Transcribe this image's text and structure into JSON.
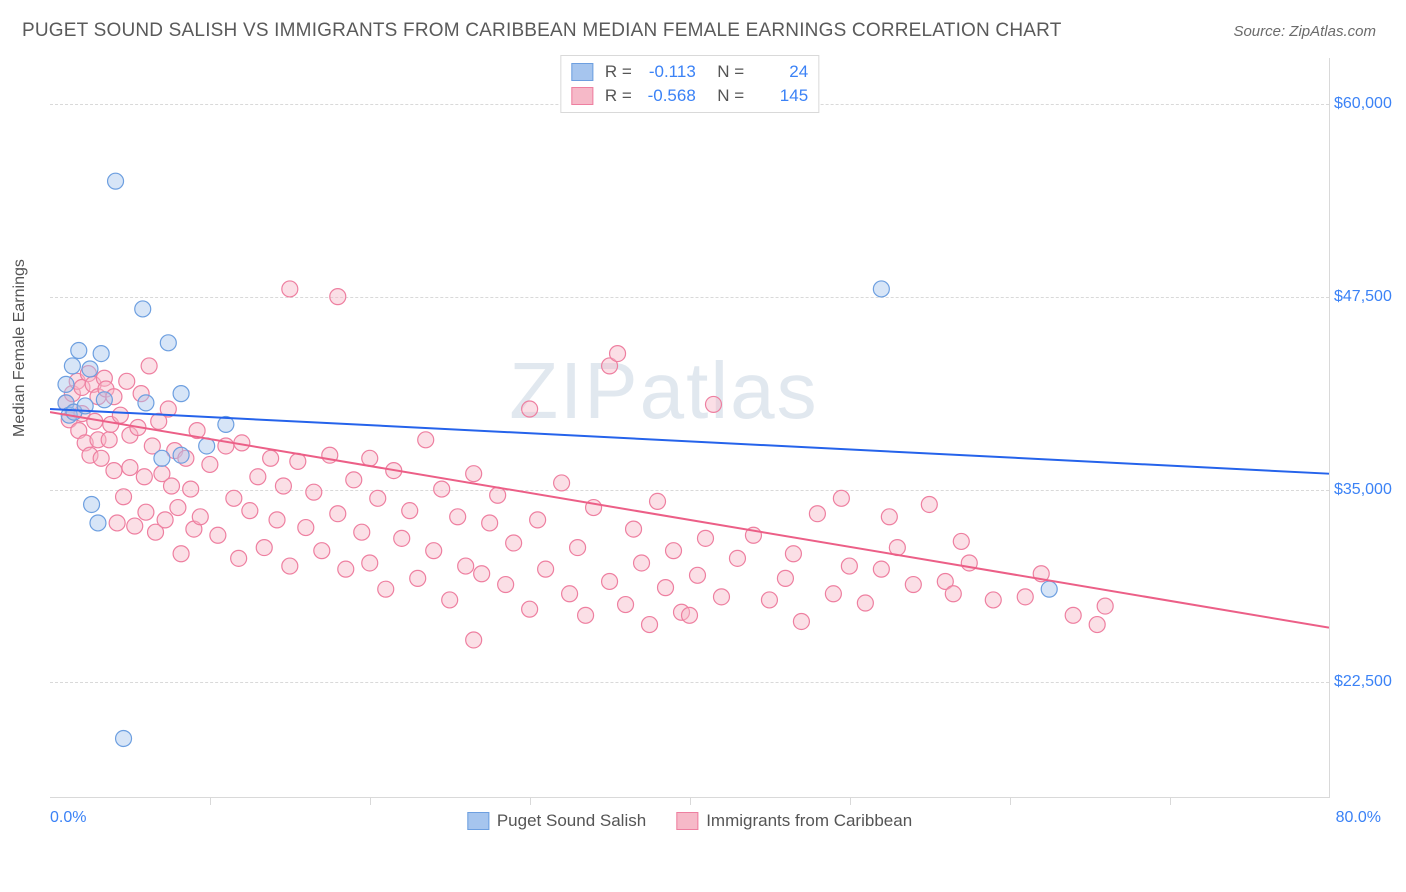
{
  "header": {
    "title": "PUGET SOUND SALISH VS IMMIGRANTS FROM CARIBBEAN MEDIAN FEMALE EARNINGS CORRELATION CHART",
    "source": "Source: ZipAtlas.com"
  },
  "chart": {
    "type": "scatter",
    "watermark": "ZIPatlas",
    "yaxis_label": "Median Female Earnings",
    "xlim": [
      0,
      80
    ],
    "ylim": [
      15000,
      63000
    ],
    "x_min_label": "0.0%",
    "x_max_label": "80.0%",
    "x_ticks": [
      10,
      20,
      30,
      40,
      50,
      60,
      70
    ],
    "y_ticks": [
      {
        "v": 22500,
        "label": "$22,500"
      },
      {
        "v": 35000,
        "label": "$35,000"
      },
      {
        "v": 47500,
        "label": "$47,500"
      },
      {
        "v": 60000,
        "label": "$60,000"
      }
    ],
    "grid_color": "#d9d9d9",
    "background_color": "#ffffff",
    "marker_radius": 8,
    "marker_opacity": 0.45,
    "line_width": 2,
    "series": [
      {
        "name": "Puget Sound Salish",
        "color_fill": "#a6c5ee",
        "color_stroke": "#6d9fe0",
        "line_color": "#2563eb",
        "R": "-0.113",
        "N": "24",
        "trend": {
          "x1": 0,
          "y1": 40200,
          "x2": 80,
          "y2": 36000
        },
        "points": [
          [
            1,
            41800
          ],
          [
            1,
            40600
          ],
          [
            1.2,
            39800
          ],
          [
            1.4,
            43000
          ],
          [
            1.5,
            40000
          ],
          [
            1.8,
            44000
          ],
          [
            2.2,
            40400
          ],
          [
            2.5,
            42800
          ],
          [
            2.6,
            34000
          ],
          [
            3,
            32800
          ],
          [
            3.2,
            43800
          ],
          [
            3.4,
            40800
          ],
          [
            4.1,
            55000
          ],
          [
            4.6,
            18800
          ],
          [
            5.8,
            46700
          ],
          [
            6,
            40600
          ],
          [
            7.4,
            44500
          ],
          [
            8.2,
            41200
          ],
          [
            7,
            37000
          ],
          [
            8.2,
            37200
          ],
          [
            9.8,
            37800
          ],
          [
            11,
            39200
          ],
          [
            52,
            48000
          ],
          [
            62.5,
            28500
          ]
        ]
      },
      {
        "name": "Immigrants from Caribbean",
        "color_fill": "#f6b9c8",
        "color_stroke": "#ee7fa0",
        "line_color": "#ec5f87",
        "R": "-0.568",
        "N": "145",
        "trend": {
          "x1": 0,
          "y1": 40000,
          "x2": 80,
          "y2": 26000
        },
        "points": [
          [
            1,
            40600
          ],
          [
            1.2,
            39500
          ],
          [
            1.4,
            41200
          ],
          [
            1.5,
            40000
          ],
          [
            1.7,
            42000
          ],
          [
            1.8,
            38800
          ],
          [
            2,
            41600
          ],
          [
            2,
            39900
          ],
          [
            2.2,
            38000
          ],
          [
            2.4,
            42500
          ],
          [
            2.5,
            37200
          ],
          [
            2.7,
            41800
          ],
          [
            2.8,
            39400
          ],
          [
            3,
            41000
          ],
          [
            3,
            38200
          ],
          [
            3.2,
            37000
          ],
          [
            3.4,
            42200
          ],
          [
            3.5,
            41500
          ],
          [
            3.7,
            38200
          ],
          [
            3.8,
            39200
          ],
          [
            4,
            41000
          ],
          [
            4,
            36200
          ],
          [
            4.2,
            32800
          ],
          [
            4.4,
            39800
          ],
          [
            4.6,
            34500
          ],
          [
            4.8,
            42000
          ],
          [
            5,
            38500
          ],
          [
            5,
            36400
          ],
          [
            5.3,
            32600
          ],
          [
            5.5,
            39000
          ],
          [
            5.7,
            41200
          ],
          [
            5.9,
            35800
          ],
          [
            6,
            33500
          ],
          [
            6.2,
            43000
          ],
          [
            6.4,
            37800
          ],
          [
            6.6,
            32200
          ],
          [
            6.8,
            39400
          ],
          [
            7,
            36000
          ],
          [
            7.2,
            33000
          ],
          [
            7.4,
            40200
          ],
          [
            7.6,
            35200
          ],
          [
            7.8,
            37500
          ],
          [
            8,
            33800
          ],
          [
            8.2,
            30800
          ],
          [
            8.5,
            37000
          ],
          [
            8.8,
            35000
          ],
          [
            9,
            32400
          ],
          [
            9.2,
            38800
          ],
          [
            9.4,
            33200
          ],
          [
            10,
            36600
          ],
          [
            10.5,
            32000
          ],
          [
            11,
            37800
          ],
          [
            11.5,
            34400
          ],
          [
            11.8,
            30500
          ],
          [
            12,
            38000
          ],
          [
            12.5,
            33600
          ],
          [
            13,
            35800
          ],
          [
            13.4,
            31200
          ],
          [
            13.8,
            37000
          ],
          [
            14.2,
            33000
          ],
          [
            14.6,
            35200
          ],
          [
            15,
            30000
          ],
          [
            15,
            48000
          ],
          [
            15.5,
            36800
          ],
          [
            16,
            32500
          ],
          [
            16.5,
            34800
          ],
          [
            17,
            31000
          ],
          [
            17.5,
            37200
          ],
          [
            18,
            33400
          ],
          [
            18,
            47500
          ],
          [
            18.5,
            29800
          ],
          [
            19,
            35600
          ],
          [
            19.5,
            32200
          ],
          [
            20,
            37000
          ],
          [
            20,
            30200
          ],
          [
            20.5,
            34400
          ],
          [
            21,
            28500
          ],
          [
            21.5,
            36200
          ],
          [
            22,
            31800
          ],
          [
            22.5,
            33600
          ],
          [
            23,
            29200
          ],
          [
            23.5,
            38200
          ],
          [
            24,
            31000
          ],
          [
            24.5,
            35000
          ],
          [
            25,
            27800
          ],
          [
            25.5,
            33200
          ],
          [
            26,
            30000
          ],
          [
            26.5,
            36000
          ],
          [
            26.5,
            25200
          ],
          [
            27,
            29500
          ],
          [
            27.5,
            32800
          ],
          [
            28,
            34600
          ],
          [
            28.5,
            28800
          ],
          [
            29,
            31500
          ],
          [
            30,
            27200
          ],
          [
            30,
            40200
          ],
          [
            30.5,
            33000
          ],
          [
            31,
            29800
          ],
          [
            32,
            35400
          ],
          [
            32.5,
            28200
          ],
          [
            33,
            31200
          ],
          [
            33.5,
            26800
          ],
          [
            34,
            33800
          ],
          [
            35,
            29000
          ],
          [
            35,
            43000
          ],
          [
            35.5,
            43800
          ],
          [
            36,
            27500
          ],
          [
            36.5,
            32400
          ],
          [
            37,
            30200
          ],
          [
            37.5,
            26200
          ],
          [
            38,
            34200
          ],
          [
            38.5,
            28600
          ],
          [
            39,
            31000
          ],
          [
            39.5,
            27000
          ],
          [
            40,
            26800
          ],
          [
            40.5,
            29400
          ],
          [
            41,
            31800
          ],
          [
            41.5,
            40500
          ],
          [
            42,
            28000
          ],
          [
            43,
            30500
          ],
          [
            44,
            32000
          ],
          [
            45,
            27800
          ],
          [
            46,
            29200
          ],
          [
            46.5,
            30800
          ],
          [
            47,
            26400
          ],
          [
            48,
            33400
          ],
          [
            49,
            28200
          ],
          [
            49.5,
            34400
          ],
          [
            50,
            30000
          ],
          [
            51,
            27600
          ],
          [
            52,
            29800
          ],
          [
            52.5,
            33200
          ],
          [
            53,
            31200
          ],
          [
            54,
            28800
          ],
          [
            55,
            34000
          ],
          [
            56,
            29000
          ],
          [
            56.5,
            28200
          ],
          [
            57,
            31600
          ],
          [
            57.5,
            30200
          ],
          [
            59,
            27800
          ],
          [
            61,
            28000
          ],
          [
            62,
            29500
          ],
          [
            64,
            26800
          ],
          [
            65.5,
            26200
          ],
          [
            66,
            27400
          ]
        ]
      }
    ]
  }
}
